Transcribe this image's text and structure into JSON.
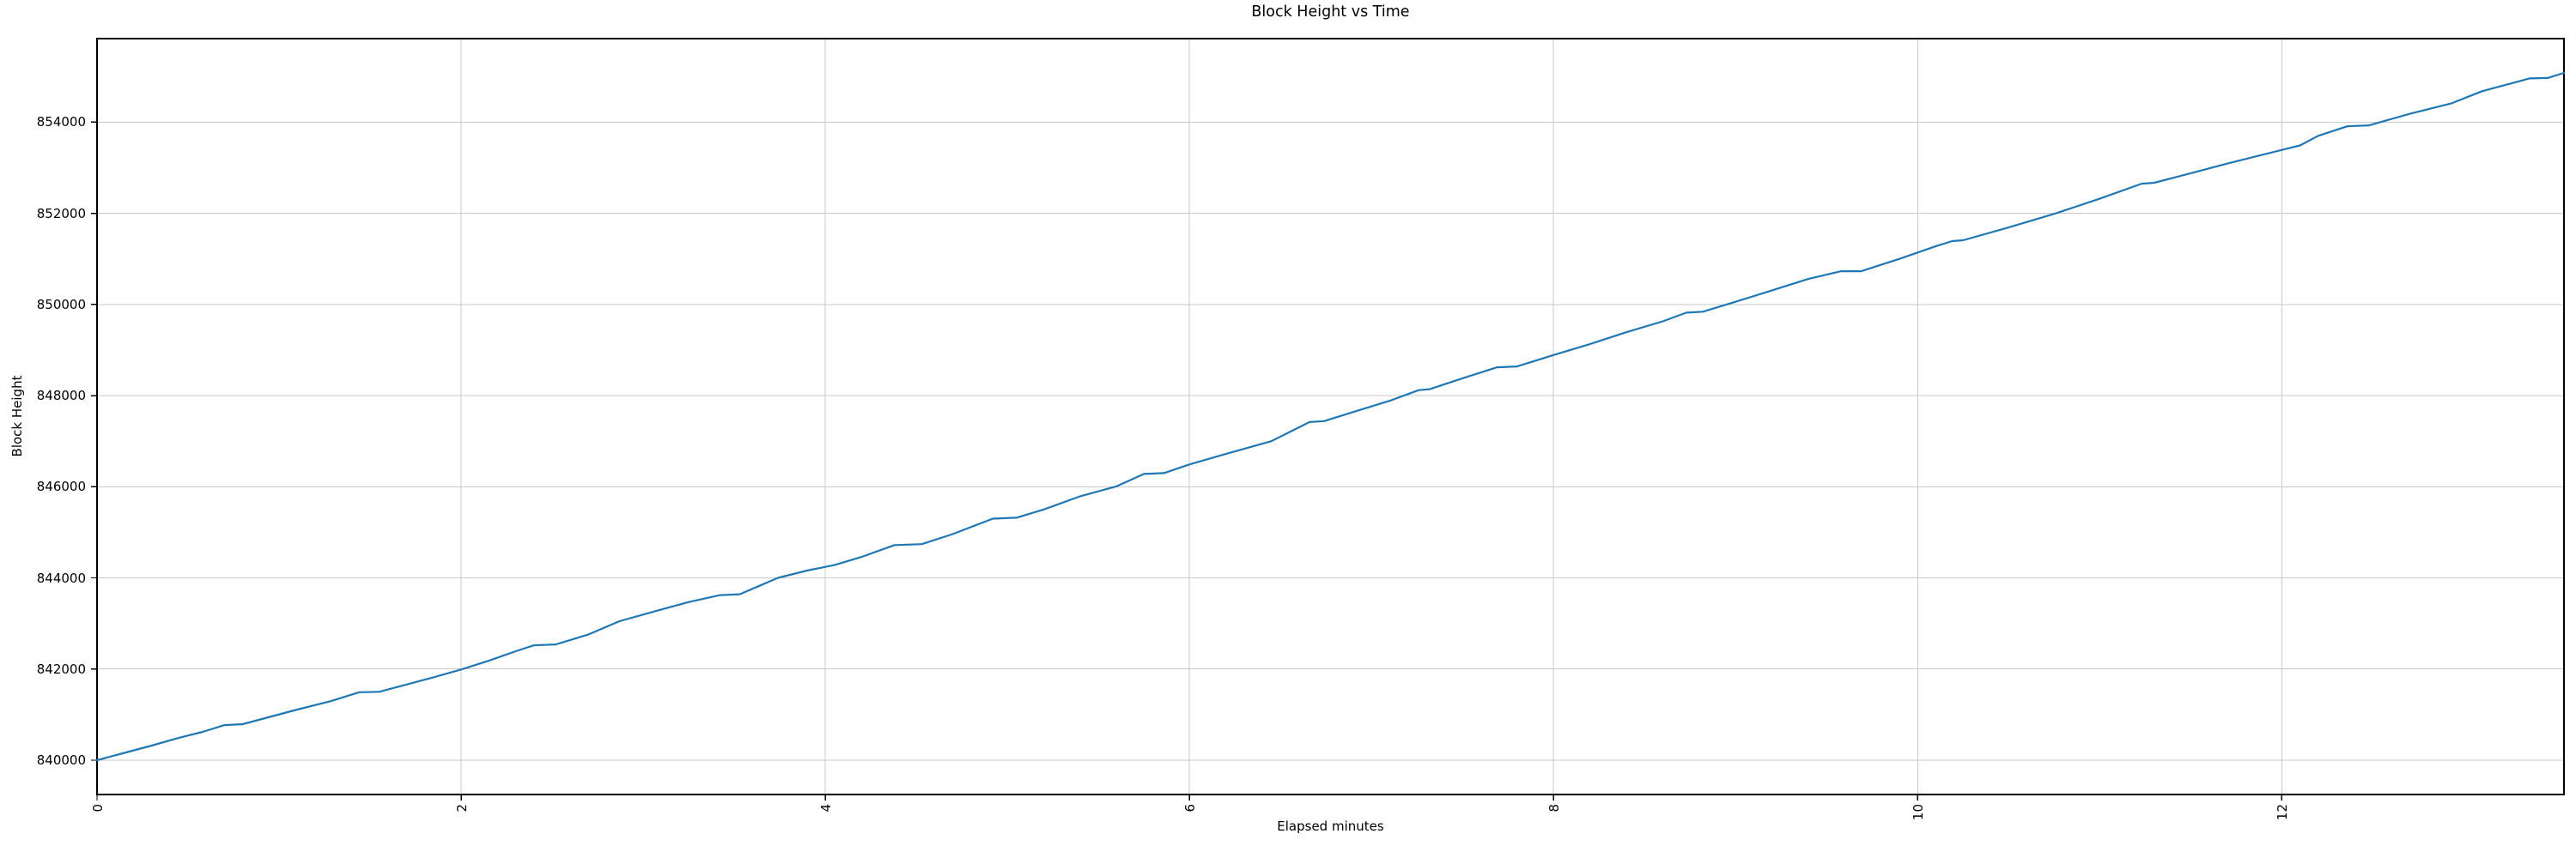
{
  "chart_data": {
    "type": "line",
    "title": "Block Height vs Time",
    "xlabel": "Elapsed minutes",
    "ylabel": "Block Height",
    "legend": "none",
    "grid": true,
    "xlim": [
      0,
      13.55
    ],
    "ylim": [
      839246,
      855834
    ],
    "xticks": [
      0,
      2,
      4,
      6,
      8,
      10,
      12
    ],
    "yticks": [
      840000,
      842000,
      844000,
      846000,
      848000,
      850000,
      852000,
      854000
    ],
    "x_tick_rotation_deg": 90,
    "series": [
      {
        "name": "block-height",
        "color": "#1f77b4",
        "points": [
          [
            0.0,
            840000
          ],
          [
            0.15,
            840160
          ],
          [
            0.3,
            840320
          ],
          [
            0.45,
            840490
          ],
          [
            0.58,
            840620
          ],
          [
            0.7,
            840770
          ],
          [
            0.8,
            840790
          ],
          [
            0.95,
            840950
          ],
          [
            1.1,
            841110
          ],
          [
            1.28,
            841290
          ],
          [
            1.44,
            841490
          ],
          [
            1.55,
            841500
          ],
          [
            1.7,
            841660
          ],
          [
            1.85,
            841820
          ],
          [
            2.0,
            841990
          ],
          [
            2.15,
            842180
          ],
          [
            2.3,
            842390
          ],
          [
            2.4,
            842520
          ],
          [
            2.52,
            842540
          ],
          [
            2.7,
            842760
          ],
          [
            2.87,
            843050
          ],
          [
            3.05,
            843250
          ],
          [
            3.25,
            843470
          ],
          [
            3.42,
            843620
          ],
          [
            3.53,
            843640
          ],
          [
            3.74,
            844000
          ],
          [
            3.9,
            844160
          ],
          [
            4.05,
            844280
          ],
          [
            4.2,
            844460
          ],
          [
            4.38,
            844720
          ],
          [
            4.53,
            844740
          ],
          [
            4.7,
            844960
          ],
          [
            4.92,
            845300
          ],
          [
            5.05,
            845320
          ],
          [
            5.2,
            845500
          ],
          [
            5.4,
            845790
          ],
          [
            5.6,
            846010
          ],
          [
            5.75,
            846280
          ],
          [
            5.86,
            846300
          ],
          [
            6.0,
            846490
          ],
          [
            6.2,
            846720
          ],
          [
            6.45,
            847000
          ],
          [
            6.66,
            847420
          ],
          [
            6.74,
            847440
          ],
          [
            6.9,
            847640
          ],
          [
            7.11,
            847900
          ],
          [
            7.26,
            848120
          ],
          [
            7.32,
            848140
          ],
          [
            7.5,
            848380
          ],
          [
            7.69,
            848620
          ],
          [
            7.8,
            848640
          ],
          [
            8.0,
            848890
          ],
          [
            8.2,
            849130
          ],
          [
            8.4,
            849390
          ],
          [
            8.6,
            849630
          ],
          [
            8.73,
            849820
          ],
          [
            8.82,
            849840
          ],
          [
            9.0,
            850060
          ],
          [
            9.2,
            850310
          ],
          [
            9.4,
            850560
          ],
          [
            9.58,
            850730
          ],
          [
            9.69,
            850730
          ],
          [
            9.9,
            851000
          ],
          [
            10.1,
            851280
          ],
          [
            10.19,
            851390
          ],
          [
            10.25,
            851410
          ],
          [
            10.5,
            851690
          ],
          [
            10.76,
            852000
          ],
          [
            11.0,
            852320
          ],
          [
            11.23,
            852650
          ],
          [
            11.3,
            852670
          ],
          [
            11.5,
            852880
          ],
          [
            11.7,
            853090
          ],
          [
            11.9,
            853290
          ],
          [
            12.1,
            853490
          ],
          [
            12.2,
            853700
          ],
          [
            12.36,
            853910
          ],
          [
            12.48,
            853930
          ],
          [
            12.7,
            854180
          ],
          [
            12.93,
            854410
          ],
          [
            13.1,
            854680
          ],
          [
            13.25,
            854840
          ],
          [
            13.36,
            854960
          ],
          [
            13.46,
            854970
          ],
          [
            13.55,
            855080
          ]
        ]
      }
    ]
  },
  "colors": {
    "line": "#1f77b4",
    "grid": "#c8c8c8",
    "spine": "#000000",
    "text": "#000000",
    "background": "#ffffff"
  }
}
